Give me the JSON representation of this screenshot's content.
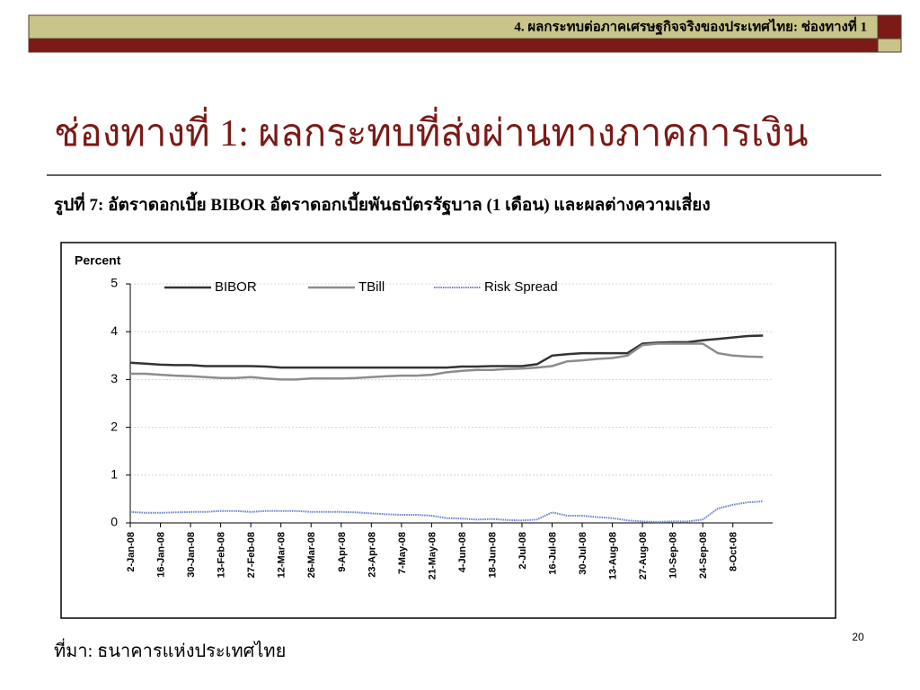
{
  "header": {
    "title": "4. ผลกระทบต่อภาคเศรษฐกิจจริงของประเทศไทย: ช่องทางที่ 1"
  },
  "title": "ช่องทางที่ 1: ผลกระทบที่ส่งผ่านทางภาคการเงิน",
  "caption": "รูปที่ 7: อัตราดอกเบี้ย BIBOR อัตราดอกเบี้ยพันธบัตรรัฐบาล (1 เดือน) และผลต่างความเสี่ยง",
  "source": "ที่มา: ธนาคารแห่งประเทศไทย",
  "page_number": 20,
  "chart_data": {
    "type": "line",
    "y_label": "Percent",
    "categories": [
      "2-Jan-08",
      null,
      "16-Jan-08",
      null,
      "30-Jan-08",
      null,
      "13-Feb-08",
      null,
      "27-Feb-08",
      null,
      "12-Mar-08",
      null,
      "26-Mar-08",
      null,
      "9-Apr-08",
      null,
      "23-Apr-08",
      null,
      "7-May-08",
      null,
      "21-May-08",
      null,
      "4-Jun-08",
      null,
      "18-Jun-08",
      null,
      "2-Jul-08",
      null,
      "16-Jul-08",
      null,
      "30-Jul-08",
      null,
      "13-Aug-08",
      null,
      "27-Aug-08",
      null,
      "10-Sep-08",
      null,
      "24-Sep-08",
      null,
      "8-Oct-08",
      null,
      null
    ],
    "series": [
      {
        "name": "BIBOR",
        "color": "#333333",
        "values": [
          3.35,
          3.33,
          3.31,
          3.3,
          3.3,
          3.28,
          3.28,
          3.28,
          3.28,
          3.27,
          3.25,
          3.25,
          3.25,
          3.25,
          3.25,
          3.25,
          3.25,
          3.25,
          3.25,
          3.25,
          3.25,
          3.25,
          3.27,
          3.27,
          3.28,
          3.28,
          3.28,
          3.32,
          3.5,
          3.53,
          3.55,
          3.55,
          3.55,
          3.55,
          3.75,
          3.77,
          3.78,
          3.78,
          3.82,
          3.85,
          3.88,
          3.91,
          3.92
        ]
      },
      {
        "name": "TBill",
        "color": "#8c8c8c",
        "values": [
          3.12,
          3.12,
          3.1,
          3.08,
          3.07,
          3.05,
          3.03,
          3.03,
          3.05,
          3.02,
          3.0,
          3.0,
          3.02,
          3.02,
          3.02,
          3.03,
          3.05,
          3.07,
          3.08,
          3.08,
          3.1,
          3.15,
          3.18,
          3.2,
          3.2,
          3.22,
          3.23,
          3.25,
          3.28,
          3.38,
          3.4,
          3.43,
          3.45,
          3.5,
          3.72,
          3.75,
          3.75,
          3.75,
          3.75,
          3.55,
          3.5,
          3.48,
          3.47
        ]
      },
      {
        "name": "Risk Spread",
        "color": "#6a7fd0",
        "values": [
          0.23,
          0.21,
          0.21,
          0.22,
          0.23,
          0.23,
          0.25,
          0.25,
          0.23,
          0.25,
          0.25,
          0.25,
          0.23,
          0.23,
          0.23,
          0.22,
          0.2,
          0.18,
          0.17,
          0.17,
          0.15,
          0.1,
          0.09,
          0.07,
          0.08,
          0.06,
          0.05,
          0.07,
          0.22,
          0.15,
          0.15,
          0.12,
          0.1,
          0.05,
          0.03,
          0.02,
          0.03,
          0.03,
          0.07,
          0.3,
          0.38,
          0.43,
          0.45
        ]
      }
    ],
    "ylim": [
      0,
      5
    ],
    "yticks": [
      0,
      1,
      2,
      3,
      4,
      5
    ],
    "grid": true
  }
}
